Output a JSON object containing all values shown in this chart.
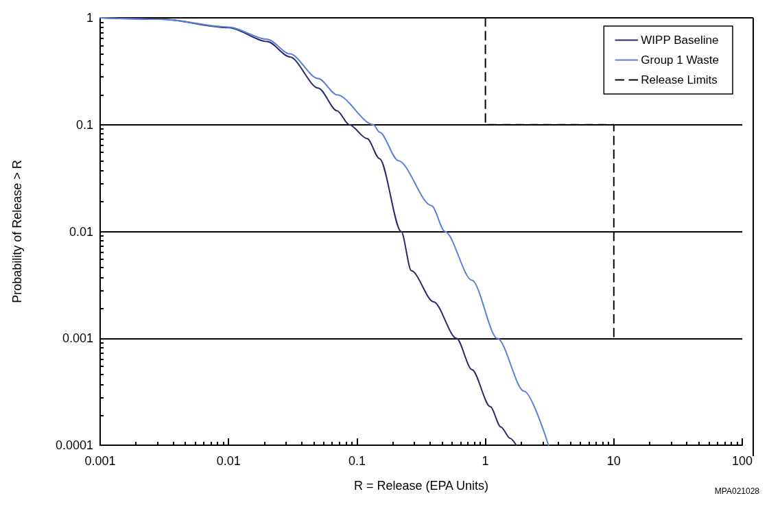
{
  "chart_data": {
    "type": "line",
    "xlabel": "R = Release (EPA Units)",
    "ylabel": "Probability of Release > R",
    "log": "xy",
    "grid": "y",
    "legend": "top right",
    "xlim": [
      0.001,
      100
    ],
    "xticks": [
      0.001,
      0.01,
      0.1,
      1,
      10,
      100
    ],
    "ylim": [
      0.0001,
      1
    ],
    "yticks": [
      0.0001,
      0.001,
      0.01,
      0.1,
      1
    ],
    "annotations": [
      "MPA021028"
    ],
    "series": [
      {
        "name": "WIPP Baseline",
        "color": "#2a2a6a",
        "x": [
          0.001,
          0.003,
          0.01,
          0.02,
          0.03,
          0.05,
          0.07,
          0.087,
          0.12,
          0.15,
          0.221,
          0.265,
          0.395,
          0.596,
          0.785,
          1.09,
          1.32,
          1.56,
          1.74
        ],
        "values": [
          1,
          0.97,
          0.81,
          0.6,
          0.43,
          0.22,
          0.135,
          0.1,
          0.074,
          0.048,
          0.01,
          0.0043,
          0.0022,
          0.001,
          0.00051,
          0.00023,
          0.000148,
          0.000116,
          0.0001
        ]
      },
      {
        "name": "Group 1 Waste",
        "color": "#5a7fd6",
        "x": [
          0.001,
          0.003,
          0.01,
          0.02,
          0.03,
          0.05,
          0.07,
          0.134,
          0.15,
          0.21,
          0.38,
          0.485,
          0.785,
          1.24,
          2.0,
          3.1
        ],
        "values": [
          1,
          0.97,
          0.82,
          0.63,
          0.46,
          0.27,
          0.19,
          0.1,
          0.085,
          0.046,
          0.0175,
          0.01,
          0.0035,
          0.001,
          0.00032,
          0.0001
        ]
      },
      {
        "name": "Release Limits",
        "color": "#000000",
        "line_style": "dashed",
        "x": [
          1,
          1,
          10,
          10
        ],
        "values": [
          1,
          0.1,
          0.1,
          0.001
        ]
      }
    ]
  }
}
